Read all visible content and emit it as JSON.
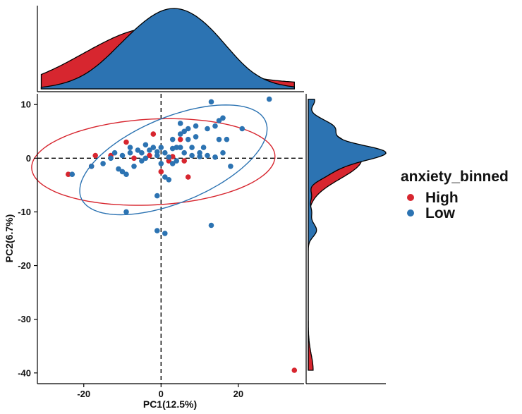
{
  "chart_data": {
    "type": "scatter",
    "xlabel": "PC1(12.5%)",
    "ylabel": "PC2(6.7%)",
    "xlim": [
      -32,
      37
    ],
    "ylim": [
      -42,
      12
    ],
    "xticks": [
      -20,
      0,
      20
    ],
    "yticks": [
      10,
      0,
      -10,
      -20,
      -30,
      -40
    ],
    "grid": false,
    "reference_lines": {
      "x": 0,
      "y": 0,
      "style": "dashed"
    },
    "legend": {
      "title": "anxiety_binned",
      "position": "right"
    },
    "series": [
      {
        "name": "High",
        "color": "#d7262f",
        "points": [
          [
            -24,
            -3
          ],
          [
            -17,
            0.5
          ],
          [
            -18,
            -1.5
          ],
          [
            -13,
            0.5
          ],
          [
            -9,
            3
          ],
          [
            -7,
            0
          ],
          [
            -2,
            4.5
          ],
          [
            -3,
            0.5
          ],
          [
            0,
            -2.5
          ],
          [
            2,
            -0.5
          ],
          [
            3,
            0.3
          ],
          [
            5,
            3.5
          ],
          [
            7,
            -3.5
          ],
          [
            6,
            -0.5
          ],
          [
            34.5,
            -39.5
          ]
        ],
        "ellipse": {
          "center": [
            -2,
            -0.7
          ],
          "semi_axes": [
            31.5,
            8
          ],
          "angle_deg": 2
        }
      },
      {
        "name": "Low",
        "color": "#2c73b2",
        "points": [
          [
            -23,
            -3
          ],
          [
            -18,
            -1.5
          ],
          [
            -15,
            -1
          ],
          [
            -13,
            0
          ],
          [
            -12,
            1
          ],
          [
            -11,
            -2
          ],
          [
            -10,
            -2.5
          ],
          [
            -10,
            0.5
          ],
          [
            -9,
            -3
          ],
          [
            -8,
            1
          ],
          [
            -8,
            2
          ],
          [
            -7,
            -1.5
          ],
          [
            -6,
            1.5
          ],
          [
            -5,
            1
          ],
          [
            -5,
            -0.5
          ],
          [
            -4,
            2.5
          ],
          [
            -4,
            0
          ],
          [
            -3,
            1.5
          ],
          [
            -2,
            2
          ],
          [
            -1,
            1.2
          ],
          [
            -1,
            0.5
          ],
          [
            0,
            -1
          ],
          [
            0,
            2
          ],
          [
            1,
            1
          ],
          [
            1,
            -3.5
          ],
          [
            2,
            0.2
          ],
          [
            2,
            -4
          ],
          [
            3,
            1.8
          ],
          [
            3,
            3.5
          ],
          [
            3,
            -1
          ],
          [
            4,
            2
          ],
          [
            4,
            -0.5
          ],
          [
            5,
            4.5
          ],
          [
            5,
            6.5
          ],
          [
            5,
            2
          ],
          [
            6,
            5
          ],
          [
            6,
            1
          ],
          [
            7,
            3.5
          ],
          [
            7,
            5.5
          ],
          [
            8,
            0.5
          ],
          [
            8,
            2
          ],
          [
            9,
            6
          ],
          [
            9,
            4
          ],
          [
            10,
            0.3
          ],
          [
            10,
            1
          ],
          [
            11,
            2
          ],
          [
            12,
            0.5
          ],
          [
            12,
            5.5
          ],
          [
            13,
            10.5
          ],
          [
            14,
            6
          ],
          [
            14,
            0.2
          ],
          [
            15,
            3.5
          ],
          [
            15,
            7
          ],
          [
            16,
            7.5
          ],
          [
            16,
            1
          ],
          [
            17,
            3.5
          ],
          [
            18,
            -1.5
          ],
          [
            21,
            5.5
          ],
          [
            28,
            11
          ],
          [
            -9,
            -10
          ],
          [
            -1,
            -7
          ],
          [
            -1,
            -13.5
          ],
          [
            1,
            -14
          ],
          [
            13,
            -12.5
          ]
        ],
        "ellipse": {
          "center": [
            3.2,
            -0.3
          ],
          "semi_axes": [
            25,
            8.2
          ],
          "angle_deg": 15
        }
      }
    ]
  }
}
